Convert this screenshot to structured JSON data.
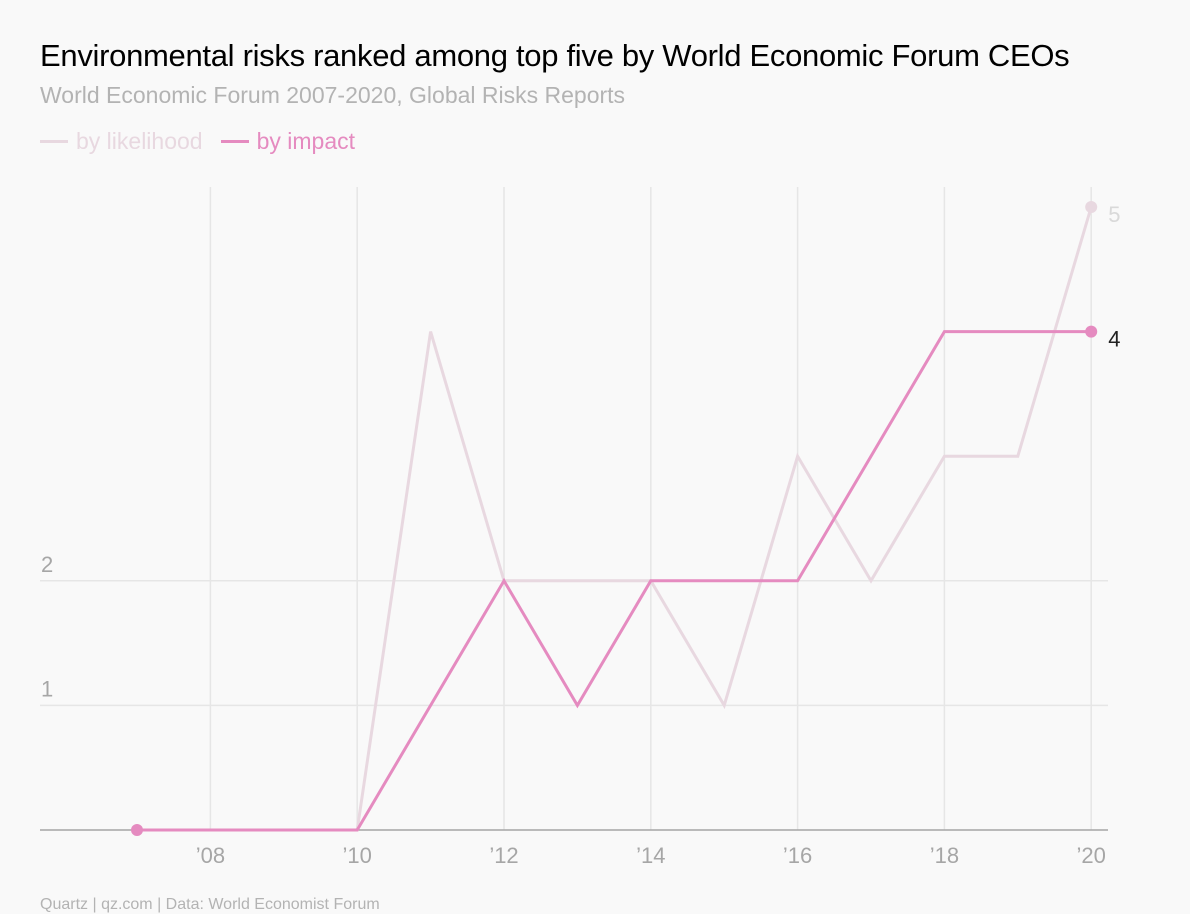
{
  "header": {
    "title": "Environmental risks ranked among top five by World Economic Forum CEOs",
    "subtitle": "World Economic Forum 2007-2020, Global Risks Reports"
  },
  "footer": {
    "source": "Quartz | qz.com | Data: World Economist Forum"
  },
  "colors": {
    "likelihood": "#e8d8e0",
    "impact": "#e58bc0",
    "grid": "#e6e6e6",
    "axis": "#a6a6a6",
    "tick_text": "#a6a6a6"
  },
  "chart_data": {
    "type": "line",
    "x": [
      2007,
      2008,
      2009,
      2010,
      2011,
      2012,
      2013,
      2014,
      2015,
      2016,
      2017,
      2018,
      2019,
      2020
    ],
    "x_tick_labels": [
      "’08",
      "’10",
      "’12",
      "’14",
      "’16",
      "’18",
      "’20"
    ],
    "x_tick_values": [
      2008,
      2010,
      2012,
      2014,
      2016,
      2018,
      2020
    ],
    "y_tick_labels": [
      "1",
      "2"
    ],
    "y_tick_values": [
      1,
      2
    ],
    "ylim": [
      0,
      5
    ],
    "xlim": [
      2006.3,
      2020.2
    ],
    "grid": true,
    "legend": "top-left",
    "series": [
      {
        "name": "by likelihood",
        "values": [
          0,
          0,
          0,
          0,
          4,
          2,
          2,
          2,
          1,
          3,
          2,
          3,
          3,
          5
        ],
        "end_label": "5"
      },
      {
        "name": "by impact",
        "values": [
          0,
          0,
          0,
          0,
          1,
          2,
          1,
          2,
          2,
          2,
          3,
          4,
          4,
          4
        ],
        "end_label": "4"
      }
    ]
  }
}
